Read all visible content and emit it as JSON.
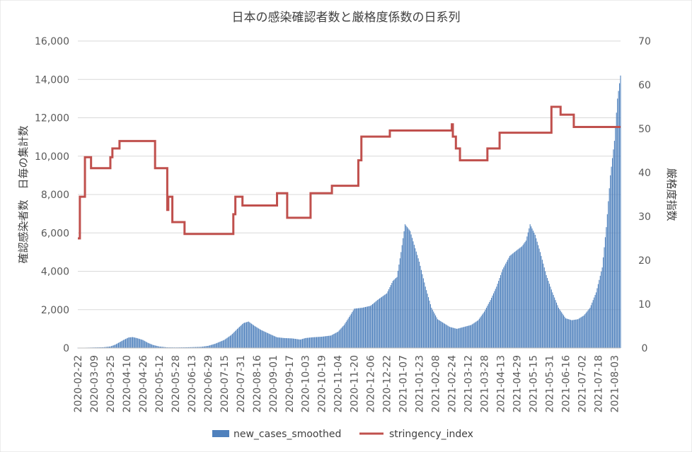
{
  "chart_data": {
    "type": "bar",
    "title": "日本の感染確認者数と厳格度係数の日系列",
    "ylabel": "確認感染者数　日毎の集計数",
    "y2label": "厳格度指数",
    "ylim": [
      0,
      16000
    ],
    "y2lim": [
      0,
      70
    ],
    "yticks": [
      "0",
      "2,000",
      "4,000",
      "6,000",
      "8,000",
      "10,000",
      "12,000",
      "14,000",
      "16,000"
    ],
    "y2ticks": [
      "0",
      "10",
      "20",
      "30",
      "40",
      "50",
      "60",
      "70"
    ],
    "x_start": "2020-02-22",
    "x_end": "2021-08-09",
    "xticks": [
      "2020-02-22",
      "2020-03-09",
      "2020-03-25",
      "2020-04-10",
      "2020-04-26",
      "2020-05-12",
      "2020-05-28",
      "2020-06-13",
      "2020-06-29",
      "2020-07-15",
      "2020-07-31",
      "2020-08-16",
      "2020-09-01",
      "2020-09-17",
      "2020-10-03",
      "2020-10-19",
      "2020-11-04",
      "2020-11-20",
      "2020-12-06",
      "2020-12-22",
      "2021-01-07",
      "2021-01-23",
      "2021-02-08",
      "2021-02-24",
      "2021-03-12",
      "2021-03-28",
      "2021-04-13",
      "2021-04-29",
      "2021-05-15",
      "2021-05-31",
      "2021-06-16",
      "2021-07-02",
      "2021-07-18",
      "2021-08-03"
    ],
    "grid": true,
    "legend": "bottom",
    "series": [
      {
        "name": "new_cases_smoothed",
        "type": "bar",
        "axis": "left",
        "color": "#4F81BD",
        "points": [
          [
            "2020-02-22",
            10
          ],
          [
            "2020-03-01",
            20
          ],
          [
            "2020-03-09",
            30
          ],
          [
            "2020-03-18",
            40
          ],
          [
            "2020-03-25",
            80
          ],
          [
            "2020-03-30",
            180
          ],
          [
            "2020-04-03",
            300
          ],
          [
            "2020-04-07",
            420
          ],
          [
            "2020-04-12",
            550
          ],
          [
            "2020-04-16",
            570
          ],
          [
            "2020-04-20",
            520
          ],
          [
            "2020-04-26",
            420
          ],
          [
            "2020-05-01",
            270
          ],
          [
            "2020-05-06",
            160
          ],
          [
            "2020-05-12",
            80
          ],
          [
            "2020-05-20",
            35
          ],
          [
            "2020-05-28",
            30
          ],
          [
            "2020-06-05",
            35
          ],
          [
            "2020-06-13",
            45
          ],
          [
            "2020-06-22",
            60
          ],
          [
            "2020-06-29",
            110
          ],
          [
            "2020-07-06",
            220
          ],
          [
            "2020-07-15",
            420
          ],
          [
            "2020-07-22",
            680
          ],
          [
            "2020-07-28",
            1000
          ],
          [
            "2020-08-03",
            1300
          ],
          [
            "2020-08-08",
            1380
          ],
          [
            "2020-08-14",
            1150
          ],
          [
            "2020-08-20",
            950
          ],
          [
            "2020-08-28",
            750
          ],
          [
            "2020-09-05",
            560
          ],
          [
            "2020-09-12",
            520
          ],
          [
            "2020-09-20",
            500
          ],
          [
            "2020-09-28",
            440
          ],
          [
            "2020-10-03",
            520
          ],
          [
            "2020-10-10",
            560
          ],
          [
            "2020-10-19",
            590
          ],
          [
            "2020-10-28",
            650
          ],
          [
            "2020-11-04",
            850
          ],
          [
            "2020-11-10",
            1200
          ],
          [
            "2020-11-16",
            1700
          ],
          [
            "2020-11-20",
            2050
          ],
          [
            "2020-11-28",
            2100
          ],
          [
            "2020-12-06",
            2200
          ],
          [
            "2020-12-14",
            2550
          ],
          [
            "2020-12-22",
            2850
          ],
          [
            "2020-12-28",
            3500
          ],
          [
            "2021-01-01",
            3700
          ],
          [
            "2021-01-05",
            5000
          ],
          [
            "2021-01-09",
            6450
          ],
          [
            "2021-01-14",
            6100
          ],
          [
            "2021-01-19",
            5200
          ],
          [
            "2021-01-23",
            4500
          ],
          [
            "2021-01-29",
            3200
          ],
          [
            "2021-02-04",
            2100
          ],
          [
            "2021-02-10",
            1500
          ],
          [
            "2021-02-16",
            1300
          ],
          [
            "2021-02-22",
            1100
          ],
          [
            "2021-03-01",
            1000
          ],
          [
            "2021-03-08",
            1100
          ],
          [
            "2021-03-15",
            1200
          ],
          [
            "2021-03-22",
            1450
          ],
          [
            "2021-03-28",
            1900
          ],
          [
            "2021-04-03",
            2500
          ],
          [
            "2021-04-09",
            3200
          ],
          [
            "2021-04-15",
            4100
          ],
          [
            "2021-04-22",
            4800
          ],
          [
            "2021-04-29",
            5100
          ],
          [
            "2021-05-04",
            5300
          ],
          [
            "2021-05-08",
            5600
          ],
          [
            "2021-05-12",
            6450
          ],
          [
            "2021-05-17",
            5900
          ],
          [
            "2021-05-22",
            5000
          ],
          [
            "2021-05-28",
            3800
          ],
          [
            "2021-06-03",
            2900
          ],
          [
            "2021-06-09",
            2100
          ],
          [
            "2021-06-16",
            1550
          ],
          [
            "2021-06-22",
            1450
          ],
          [
            "2021-06-28",
            1500
          ],
          [
            "2021-07-04",
            1700
          ],
          [
            "2021-07-10",
            2100
          ],
          [
            "2021-07-16",
            2900
          ],
          [
            "2021-07-22",
            4200
          ],
          [
            "2021-07-26",
            6300
          ],
          [
            "2021-07-30",
            9000
          ],
          [
            "2021-08-03",
            10800
          ],
          [
            "2021-08-06",
            13000
          ],
          [
            "2021-08-09",
            14200
          ]
        ]
      },
      {
        "name": "stringency_index",
        "type": "line",
        "axis": "right",
        "color": "#C0504D",
        "steps": [
          [
            "2020-02-22",
            25
          ],
          [
            "2020-02-24",
            34.5
          ],
          [
            "2020-02-29",
            43.5
          ],
          [
            "2020-03-06",
            41
          ],
          [
            "2020-03-25",
            43.5
          ],
          [
            "2020-03-27",
            45.5
          ],
          [
            "2020-04-03",
            47.2
          ],
          [
            "2020-05-08",
            41
          ],
          [
            "2020-05-20",
            31.5
          ],
          [
            "2020-05-21",
            34.5
          ],
          [
            "2020-05-25",
            28.7
          ],
          [
            "2020-06-06",
            26
          ],
          [
            "2020-07-24",
            30.5
          ],
          [
            "2020-07-26",
            34.5
          ],
          [
            "2020-08-02",
            32.5
          ],
          [
            "2020-09-05",
            35.3
          ],
          [
            "2020-09-15",
            29.7
          ],
          [
            "2020-10-08",
            35.3
          ],
          [
            "2020-10-29",
            37
          ],
          [
            "2020-11-24",
            42.8
          ],
          [
            "2020-11-27",
            48.2
          ],
          [
            "2020-12-25",
            49.6
          ],
          [
            "2021-02-24",
            51
          ],
          [
            "2021-02-25",
            48.2
          ],
          [
            "2021-02-28",
            45.5
          ],
          [
            "2021-03-04",
            42.8
          ],
          [
            "2021-03-31",
            45.5
          ],
          [
            "2021-04-12",
            49.1
          ],
          [
            "2021-06-02",
            55
          ],
          [
            "2021-06-11",
            53.2
          ],
          [
            "2021-06-24",
            50.4
          ],
          [
            "2021-08-09",
            50.4
          ]
        ]
      }
    ]
  }
}
